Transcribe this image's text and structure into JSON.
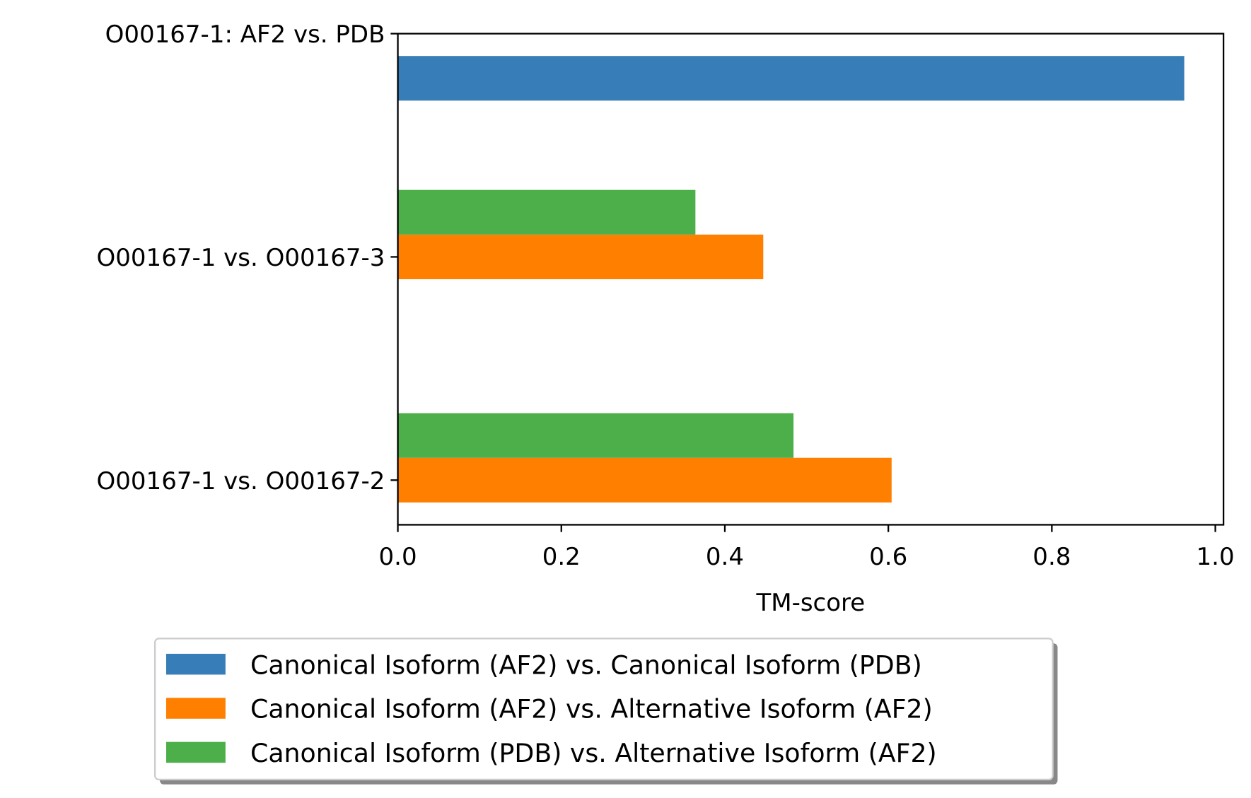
{
  "chart_data": {
    "type": "bar",
    "orientation": "horizontal",
    "categories": [
      "O00167-1 vs. O00167-2",
      "O00167-1 vs. O00167-3",
      "O00167-1: AF2 vs. PDB"
    ],
    "series": [
      {
        "name": "Canonical Isoform (AF2) vs. Canonical Isoform (PDB)",
        "color": "#377eb8",
        "values": [
          null,
          null,
          0.962
        ]
      },
      {
        "name": "Canonical Isoform (AF2) vs. Alternative Isoform (AF2)",
        "color": "#ff7f00",
        "values": [
          0.604,
          0.447,
          null
        ]
      },
      {
        "name": "Canonical Isoform (PDB) vs. Alternative Isoform (AF2)",
        "color": "#4daf4a",
        "values": [
          0.484,
          0.364,
          null
        ]
      }
    ],
    "xlabel": "TM-score",
    "ylabel": "",
    "title": "",
    "xlim": [
      0,
      1.01
    ],
    "xticks": [
      "0.0",
      "0.2",
      "0.4",
      "0.6",
      "0.8",
      "1.0"
    ],
    "grid": false,
    "legend_position": "bottom-center (below axes)"
  }
}
